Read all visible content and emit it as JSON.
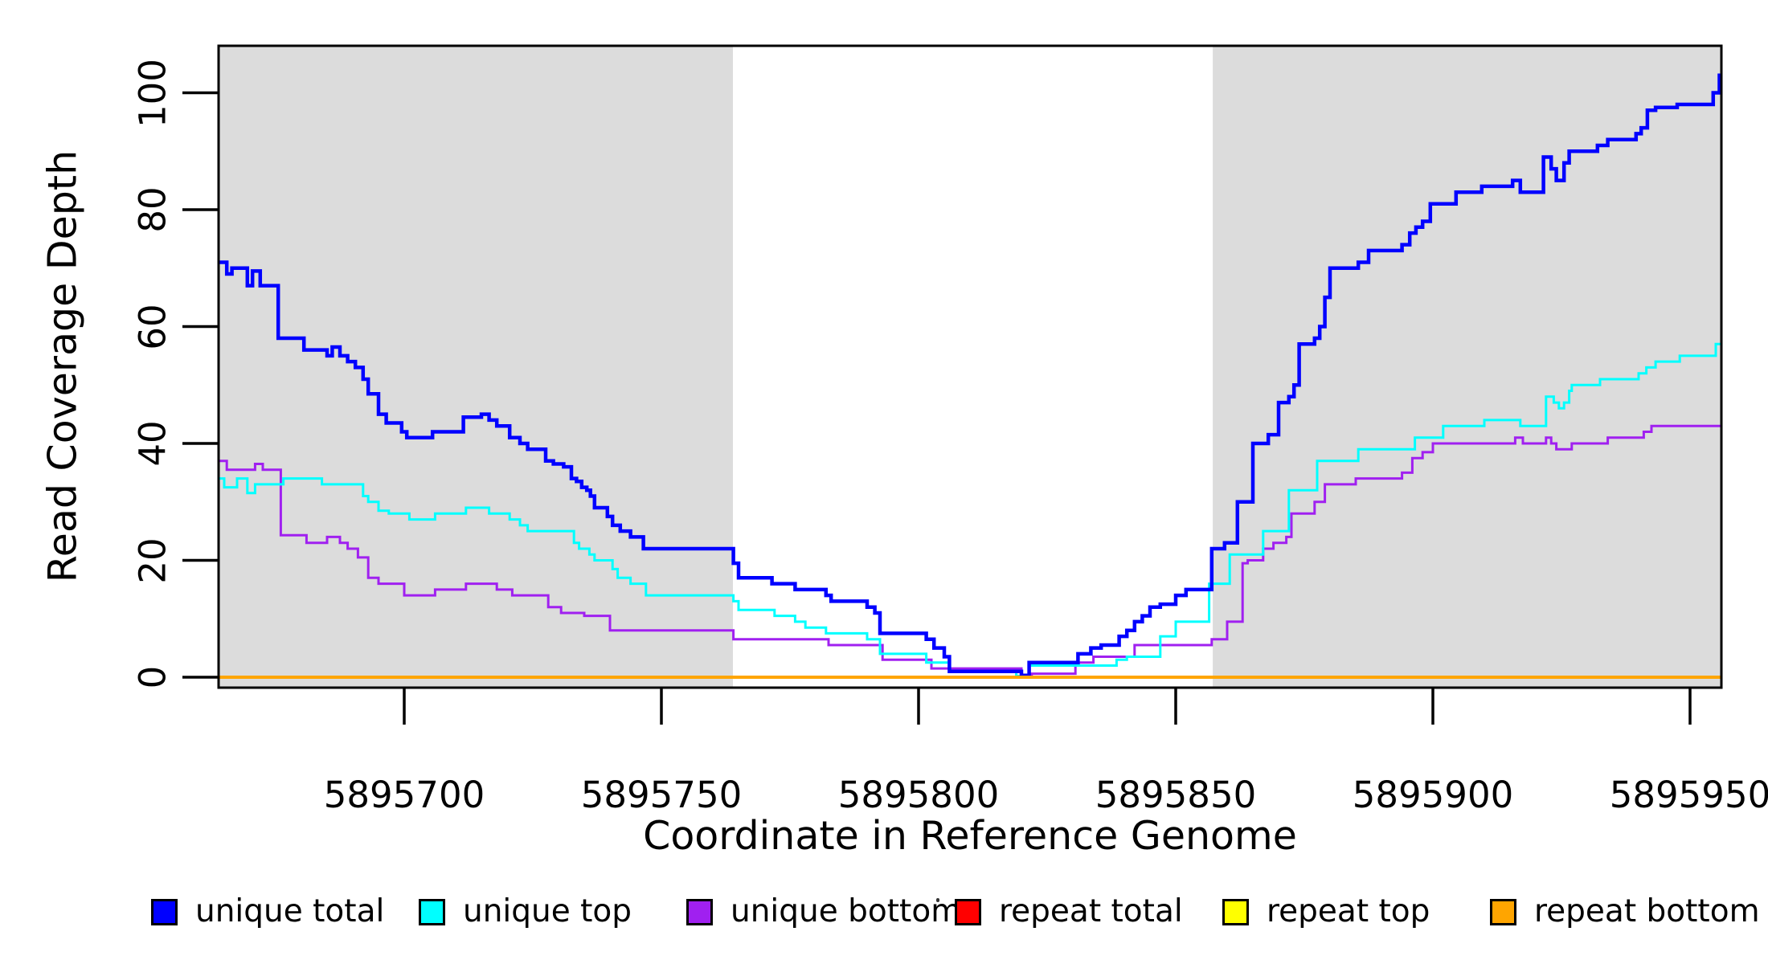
{
  "chart_data": {
    "type": "line",
    "subtype": "step",
    "title": "",
    "xlabel": "Coordinate in Reference Genome",
    "ylabel": "Read Coverage Depth",
    "x_range": [
      5895663.9,
      5895956.1
    ],
    "y_range": [
      0,
      104
    ],
    "x_ticks": [
      5895700,
      5895750,
      5895800,
      5895850,
      5895900,
      5895950
    ],
    "y_ticks": [
      0,
      20,
      40,
      60,
      80,
      100
    ],
    "grid": false,
    "plot_background": "#ffffff",
    "shaded_regions": [
      {
        "x1": 5895663.9,
        "x2": 5895763.9,
        "color": "#dcdcdc"
      },
      {
        "x1": 5895857.2,
        "x2": 5895956.1,
        "color": "#dcdcdc"
      }
    ],
    "legend": {
      "position": "bottom",
      "items": [
        {
          "label": "unique total",
          "color": "#0000ff"
        },
        {
          "label": "unique top",
          "color": "#00ffff"
        },
        {
          "label": "unique bottom",
          "color": "#a020f0"
        },
        {
          "label": "repeat total",
          "color": "#ff0000"
        },
        {
          "label": "repeat top",
          "color": "#ffff00"
        },
        {
          "label": "repeat bottom",
          "color": "#ffa500"
        }
      ]
    },
    "series": [
      {
        "name": "repeat total",
        "color": "#ff0000",
        "width": 3,
        "steps": [
          [
            5895663.9,
            0
          ],
          [
            5895956.1,
            0
          ]
        ]
      },
      {
        "name": "repeat top",
        "color": "#ffff00",
        "width": 3,
        "steps": [
          [
            5895663.9,
            0
          ],
          [
            5895956.1,
            0
          ]
        ]
      },
      {
        "name": "unique bottom",
        "color": "#a020f0",
        "width": 3,
        "steps": [
          [
            5895663.9,
            37
          ],
          [
            5895665.5,
            35.5
          ],
          [
            5895671,
            36.5
          ],
          [
            5895672.5,
            35.5
          ],
          [
            5895676,
            24.3
          ],
          [
            5895681,
            23
          ],
          [
            5895685,
            24
          ],
          [
            5895687.5,
            23
          ],
          [
            5895689,
            22
          ],
          [
            5895691,
            20.5
          ],
          [
            5895693,
            17
          ],
          [
            5895695,
            16
          ],
          [
            5895700,
            14
          ],
          [
            5895706,
            15
          ],
          [
            5895712,
            16
          ],
          [
            5895718,
            15
          ],
          [
            5895721,
            14
          ],
          [
            5895728,
            12
          ],
          [
            5895730.5,
            11
          ],
          [
            5895735,
            10.5
          ],
          [
            5895740,
            8
          ],
          [
            5895764,
            6.5
          ],
          [
            5895782.5,
            5.5
          ],
          [
            5895793,
            3
          ],
          [
            5895802.5,
            1.5
          ],
          [
            5895820,
            0.2
          ],
          [
            5895822,
            0.6
          ],
          [
            5895830.5,
            2.5
          ],
          [
            5895834,
            3.5
          ],
          [
            5895842,
            5.5
          ],
          [
            5895857,
            6.5
          ],
          [
            5895860,
            9.5
          ],
          [
            5895863,
            19.5
          ],
          [
            5895864,
            20
          ],
          [
            5895867,
            22
          ],
          [
            5895869,
            23
          ],
          [
            5895871.5,
            24
          ],
          [
            5895872.5,
            28
          ],
          [
            5895877,
            30
          ],
          [
            5895879,
            33
          ],
          [
            5895885,
            34
          ],
          [
            5895894,
            35
          ],
          [
            5895896,
            37.5
          ],
          [
            5895898,
            38.5
          ],
          [
            5895900,
            40
          ],
          [
            5895916,
            41
          ],
          [
            5895917.5,
            40
          ],
          [
            5895922,
            41
          ],
          [
            5895923,
            40
          ],
          [
            5895924,
            39
          ],
          [
            5895927,
            40
          ],
          [
            5895934,
            41
          ],
          [
            5895941,
            42
          ],
          [
            5895942.5,
            43
          ]
        ]
      },
      {
        "name": "unique top",
        "color": "#00ffff",
        "width": 3,
        "steps": [
          [
            5895663.9,
            34
          ],
          [
            5895665,
            32.5
          ],
          [
            5895667.5,
            34
          ],
          [
            5895669.5,
            31.5
          ],
          [
            5895671,
            33
          ],
          [
            5895676.5,
            34
          ],
          [
            5895684,
            33
          ],
          [
            5895692,
            31
          ],
          [
            5895693,
            30
          ],
          [
            5895695,
            28.5
          ],
          [
            5895697,
            28
          ],
          [
            5895701,
            27
          ],
          [
            5895706,
            28
          ],
          [
            5895712,
            29
          ],
          [
            5895716.5,
            28
          ],
          [
            5895720.5,
            27
          ],
          [
            5895722.5,
            26
          ],
          [
            5895724,
            25
          ],
          [
            5895733,
            23
          ],
          [
            5895734,
            22
          ],
          [
            5895736,
            21
          ],
          [
            5895737,
            20
          ],
          [
            5895740.5,
            18.5
          ],
          [
            5895741.5,
            17
          ],
          [
            5895744,
            16
          ],
          [
            5895747,
            14
          ],
          [
            5895764,
            13
          ],
          [
            5895765,
            11.5
          ],
          [
            5895772,
            10.5
          ],
          [
            5895776,
            9.5
          ],
          [
            5895778,
            8.5
          ],
          [
            5895782,
            7.5
          ],
          [
            5895790,
            6.5
          ],
          [
            5895792.5,
            4
          ],
          [
            5895801.5,
            2.5
          ],
          [
            5895806,
            1
          ],
          [
            5895819,
            0.2
          ],
          [
            5895821.5,
            2
          ],
          [
            5895838.5,
            3
          ],
          [
            5895840.5,
            3.5
          ],
          [
            5895847,
            7
          ],
          [
            5895850,
            9.5
          ],
          [
            5895856.5,
            16
          ],
          [
            5895860.5,
            21
          ],
          [
            5895867,
            25
          ],
          [
            5895872,
            32
          ],
          [
            5895877.5,
            37
          ],
          [
            5895885.5,
            39
          ],
          [
            5895896.5,
            41
          ],
          [
            5895902,
            43
          ],
          [
            5895910,
            44
          ],
          [
            5895917,
            43
          ],
          [
            5895922,
            48
          ],
          [
            5895923.5,
            47
          ],
          [
            5895924.5,
            46
          ],
          [
            5895925.5,
            47
          ],
          [
            5895926.5,
            49
          ],
          [
            5895927,
            50
          ],
          [
            5895932.5,
            51
          ],
          [
            5895940,
            52
          ],
          [
            5895941.5,
            53
          ],
          [
            5895943.3,
            54
          ],
          [
            5895948,
            55
          ],
          [
            5895955,
            57
          ]
        ]
      },
      {
        "name": "unique total",
        "color": "#0000ff",
        "width": 4.5,
        "steps": [
          [
            5895663.9,
            71
          ],
          [
            5895665.5,
            69
          ],
          [
            5895666.5,
            70
          ],
          [
            5895669.5,
            67
          ],
          [
            5895670.5,
            69.5
          ],
          [
            5895672,
            67
          ],
          [
            5895675.5,
            58
          ],
          [
            5895680.5,
            56
          ],
          [
            5895685,
            55
          ],
          [
            5895686,
            56.5
          ],
          [
            5895687.5,
            55
          ],
          [
            5895689,
            54
          ],
          [
            5895690.5,
            53
          ],
          [
            5895692,
            51
          ],
          [
            5895693,
            48.5
          ],
          [
            5895695,
            45
          ],
          [
            5895696.5,
            43.5
          ],
          [
            5895699.5,
            42
          ],
          [
            5895700.5,
            41
          ],
          [
            5895705.5,
            42
          ],
          [
            5895711.5,
            44.5
          ],
          [
            5895715,
            45
          ],
          [
            5895716.5,
            44
          ],
          [
            5895718,
            43
          ],
          [
            5895720.5,
            41
          ],
          [
            5895722.5,
            40
          ],
          [
            5895724,
            39
          ],
          [
            5895727.5,
            37
          ],
          [
            5895729,
            36.5
          ],
          [
            5895731,
            36
          ],
          [
            5895732.5,
            34
          ],
          [
            5895733.5,
            33.5
          ],
          [
            5895734.5,
            32.5
          ],
          [
            5895735.5,
            32
          ],
          [
            5895736.2,
            31
          ],
          [
            5895737,
            29
          ],
          [
            5895739.5,
            27.5
          ],
          [
            5895740.5,
            26
          ],
          [
            5895742,
            25
          ],
          [
            5895744,
            24
          ],
          [
            5895746.5,
            22
          ],
          [
            5895764,
            19.5
          ],
          [
            5895765,
            17
          ],
          [
            5895771.5,
            16
          ],
          [
            5895776,
            15
          ],
          [
            5895782,
            14
          ],
          [
            5895783,
            13
          ],
          [
            5895790,
            12
          ],
          [
            5895791.5,
            11
          ],
          [
            5895792.5,
            7.5
          ],
          [
            5895801.5,
            6.5
          ],
          [
            5895803,
            5
          ],
          [
            5895805,
            3.5
          ],
          [
            5895806,
            1
          ],
          [
            5895820,
            0.3
          ],
          [
            5895821.5,
            2.5
          ],
          [
            5895831,
            4
          ],
          [
            5895833.5,
            5
          ],
          [
            5895835.5,
            5.5
          ],
          [
            5895839,
            7
          ],
          [
            5895840.5,
            8
          ],
          [
            5895842,
            9.5
          ],
          [
            5895843.5,
            10.5
          ],
          [
            5895845,
            12
          ],
          [
            5895847,
            12.5
          ],
          [
            5895850,
            14
          ],
          [
            5895852,
            15
          ],
          [
            5895857,
            22
          ],
          [
            5895859.5,
            23
          ],
          [
            5895862,
            30
          ],
          [
            5895865,
            40
          ],
          [
            5895868,
            41.5
          ],
          [
            5895870,
            47
          ],
          [
            5895872,
            48
          ],
          [
            5895873,
            50
          ],
          [
            5895874,
            57
          ],
          [
            5895877,
            58
          ],
          [
            5895878,
            60
          ],
          [
            5895879,
            65
          ],
          [
            5895880,
            70
          ],
          [
            5895885.5,
            71
          ],
          [
            5895887.5,
            73
          ],
          [
            5895894,
            74
          ],
          [
            5895895.5,
            76
          ],
          [
            5895896.7,
            77
          ],
          [
            5895898,
            78
          ],
          [
            5895899.5,
            81
          ],
          [
            5895904.5,
            83
          ],
          [
            5895909.5,
            84
          ],
          [
            5895915.5,
            85
          ],
          [
            5895917,
            83
          ],
          [
            5895921.5,
            89
          ],
          [
            5895923,
            87
          ],
          [
            5895924,
            85
          ],
          [
            5895925.5,
            88
          ],
          [
            5895926.5,
            90
          ],
          [
            5895932,
            91
          ],
          [
            5895934,
            92
          ],
          [
            5895939.5,
            93
          ],
          [
            5895940.5,
            94
          ],
          [
            5895941.7,
            97
          ],
          [
            5895943.3,
            97.5
          ],
          [
            5895947.5,
            98
          ],
          [
            5895954.5,
            100
          ],
          [
            5895955.7,
            103
          ]
        ]
      },
      {
        "name": "repeat bottom",
        "color": "#ffa500",
        "width": 4,
        "steps": [
          [
            5895663.9,
            0
          ],
          [
            5895956.1,
            0
          ]
        ]
      }
    ]
  }
}
